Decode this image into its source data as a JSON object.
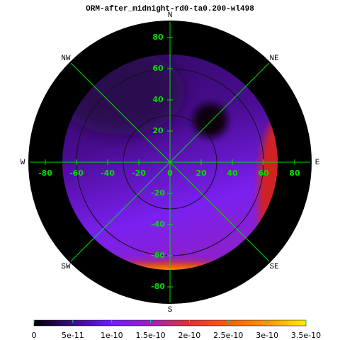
{
  "chart_data": {
    "type": "polar-heatmap",
    "title": "ORM-after_midnight-rd0-ta0.200-wl498",
    "compass": [
      "N",
      "NE",
      "E",
      "SE",
      "S",
      "SW",
      "W",
      "NW"
    ],
    "xlim": [
      -90,
      90
    ],
    "ylim": [
      -90,
      90
    ],
    "xticks": [
      -80,
      -60,
      -40,
      -20,
      0,
      20,
      40,
      60,
      80
    ],
    "yticks": [
      80,
      60,
      40,
      20,
      -20,
      -40,
      -60,
      -80
    ],
    "grid_color": "#00dd00",
    "colorbar": {
      "clim": [
        0,
        3.5e-10
      ],
      "ticks": [
        0,
        5e-11,
        1e-10,
        1.5e-10,
        2e-10,
        2.5e-10,
        3e-10,
        3.5e-10
      ]
    }
  }
}
